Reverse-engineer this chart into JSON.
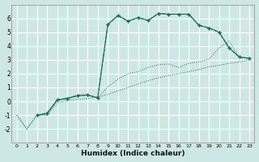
{
  "xlabel": "Humidex (Indice chaleur)",
  "bg_color": "#cde8e4",
  "grid_color": "#ffffff",
  "line_color": "#1a6b5a",
  "xlim": [
    -0.5,
    23.5
  ],
  "ylim": [
    -3,
    7
  ],
  "xticks": [
    0,
    1,
    2,
    3,
    4,
    5,
    6,
    7,
    8,
    9,
    10,
    11,
    12,
    13,
    14,
    15,
    16,
    17,
    18,
    19,
    20,
    21,
    22,
    23
  ],
  "yticks": [
    -2,
    -1,
    0,
    1,
    2,
    3,
    4,
    5,
    6
  ],
  "line1_x": [
    0,
    1,
    2,
    3,
    4,
    5,
    6,
    7,
    8,
    9,
    10,
    11,
    12,
    13,
    14,
    15,
    16,
    17,
    18,
    19,
    20,
    21,
    22,
    23
  ],
  "line1_y": [
    -1,
    -2,
    -1,
    -1,
    -0.1,
    0.05,
    0.15,
    0.2,
    0.3,
    0.5,
    0.75,
    1.0,
    1.25,
    1.5,
    1.7,
    1.85,
    2.0,
    2.15,
    2.3,
    2.5,
    2.6,
    2.75,
    2.85,
    3.0
  ],
  "line2_x": [
    0,
    1,
    2,
    3,
    4,
    5,
    6,
    7,
    8,
    9,
    10,
    11,
    12,
    13,
    14,
    15,
    16,
    17,
    18,
    19,
    20,
    21,
    22,
    23
  ],
  "line2_y": [
    -1,
    -2,
    -1,
    -0.8,
    0.1,
    0.25,
    0.45,
    0.5,
    0.25,
    1.05,
    1.6,
    2.0,
    2.15,
    2.45,
    2.65,
    2.7,
    2.45,
    2.75,
    2.85,
    3.05,
    3.85,
    4.35,
    3.15,
    3.15
  ],
  "line3_x": [
    2,
    3,
    4,
    5,
    6,
    7,
    8,
    9,
    10,
    11,
    12,
    13,
    14,
    15,
    16,
    17,
    18,
    19,
    20,
    21,
    22,
    23
  ],
  "line3_y": [
    -1,
    -0.9,
    0.1,
    0.2,
    0.4,
    0.45,
    0.25,
    5.55,
    6.2,
    5.8,
    6.05,
    5.85,
    6.35,
    6.3,
    6.3,
    6.3,
    5.5,
    5.3,
    5.0,
    3.85,
    3.2,
    3.1
  ],
  "line4_x": [
    2,
    3,
    4,
    5,
    6,
    7,
    8,
    9,
    10,
    11,
    12,
    13,
    14,
    15,
    16,
    17,
    18,
    19,
    20,
    21,
    22,
    23
  ],
  "line4_y": [
    -1,
    -0.9,
    0.1,
    0.2,
    0.4,
    0.45,
    0.25,
    5.55,
    6.2,
    5.8,
    6.05,
    5.85,
    6.35,
    6.3,
    6.3,
    6.3,
    5.5,
    5.3,
    5.0,
    3.85,
    3.2,
    3.1
  ]
}
